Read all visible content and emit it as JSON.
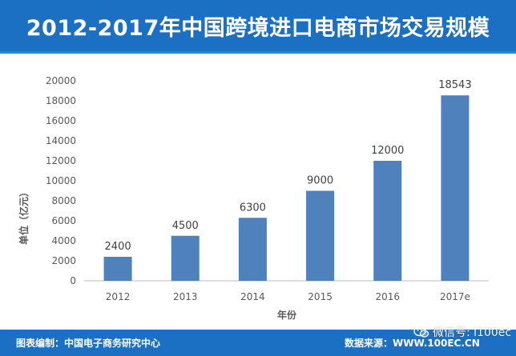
{
  "header": {
    "title": "2012-2017年中国跨境进口电商市场交易规模"
  },
  "chart_data": {
    "type": "bar",
    "title": "2012-2017年中国跨境进口电商市场交易规模",
    "categories": [
      "2012",
      "2013",
      "2014",
      "2015",
      "2016",
      "2017e"
    ],
    "values": [
      2400,
      4500,
      6300,
      9000,
      12000,
      18543
    ],
    "data_labels": [
      "2400",
      "4500",
      "6300",
      "9000",
      "12000",
      "18543"
    ],
    "xlabel": "年份",
    "ylabel": "单位（亿元）",
    "ylim": [
      0,
      20000
    ],
    "yticks": [
      0,
      2000,
      4000,
      6000,
      8000,
      10000,
      12000,
      14000,
      16000,
      18000,
      20000
    ],
    "grid": false,
    "legend": "none",
    "bar_color": "#4f81bd"
  },
  "footer": {
    "left": "图表编制：中国电子商务研究中心",
    "right": "数据来源：WWW.100EC.CN"
  },
  "watermark": {
    "text": "微信号: i100ec",
    "icon": "wechat-icon"
  },
  "colors": {
    "header_bg": "#1b70c4",
    "bar": "#4f81bd",
    "axis_text": "#595959"
  }
}
